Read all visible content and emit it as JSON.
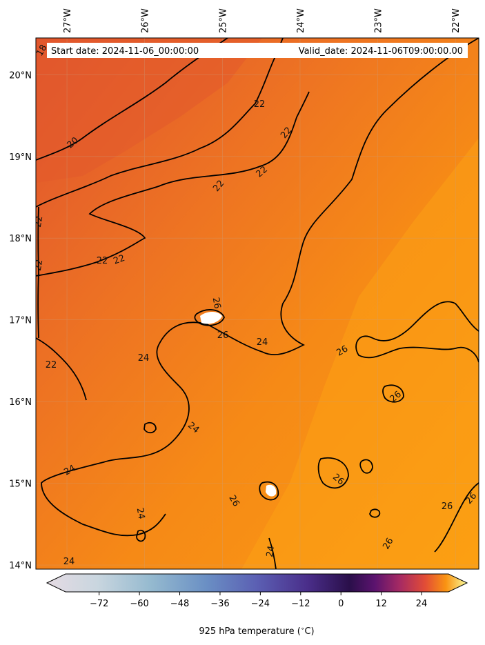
{
  "map": {
    "start_date": "Start date: 2024-11-06_00:00:00",
    "valid_date": "Valid_date: 2024-11-06T09:00:00.00",
    "lon_labels": [
      "27°W",
      "26°W",
      "25°W",
      "24°W",
      "23°W",
      "22°W"
    ],
    "lat_labels": [
      "20°N",
      "19°N",
      "18°N",
      "17°N",
      "16°N",
      "15°N",
      "14°N"
    ],
    "lon_values": [
      -27,
      -26,
      -25,
      -24,
      -23,
      -22
    ],
    "lat_values": [
      20,
      19,
      18,
      17,
      16,
      15,
      14
    ],
    "contour_levels": [
      "18",
      "20",
      "22",
      "22",
      "22",
      "22",
      "22",
      "22",
      "22",
      "22",
      "22",
      "24",
      "24",
      "24",
      "24",
      "24",
      "24",
      "24",
      "26",
      "26",
      "26",
      "26",
      "26",
      "26",
      "26",
      "26",
      "26"
    ],
    "colors": {
      "warm_dark": "#e2582e",
      "warm_mid": "#f07a1e",
      "warm_light": "#fb9e12",
      "contour": "#000000",
      "info_box": "#ffffff"
    }
  },
  "colorbar": {
    "ticks": [
      "−72",
      "−60",
      "−48",
      "−36",
      "−24",
      "−12",
      "0",
      "12",
      "24"
    ],
    "tick_values": [
      -72,
      -60,
      -48,
      -36,
      -24,
      -12,
      0,
      12,
      24
    ],
    "label": "925 hPa temperature ($^\\circ$C)",
    "label_display": "925 hPa temperature (",
    "label_unit": "C)",
    "range": [
      -82,
      32
    ]
  }
}
